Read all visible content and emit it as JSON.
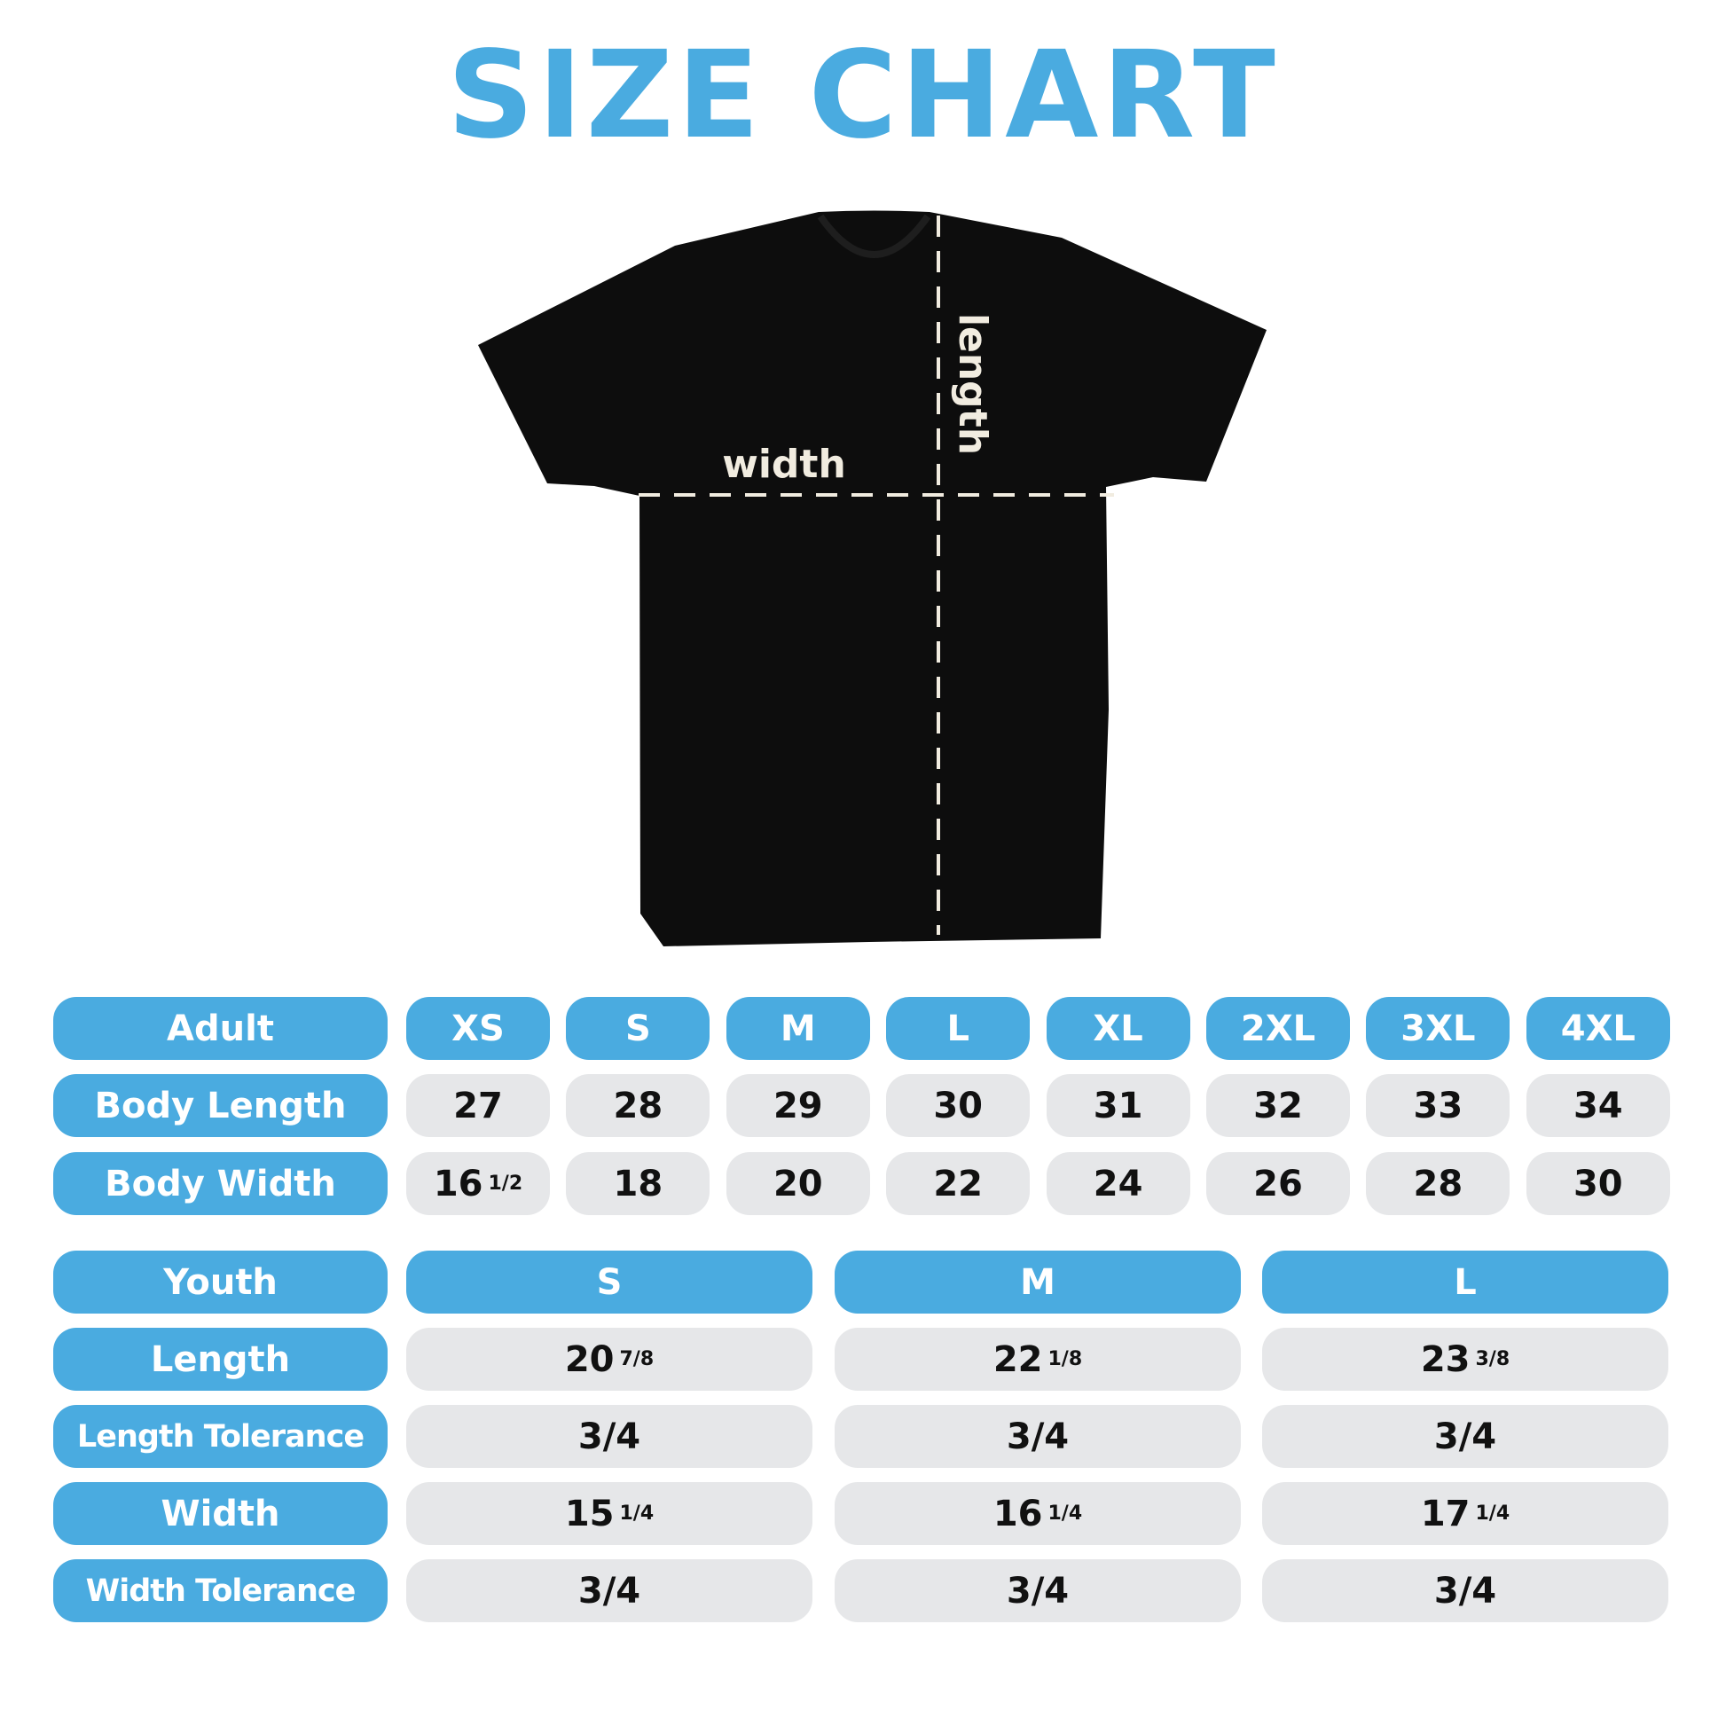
{
  "title": "SIZE CHART",
  "shirt": {
    "width_label": "width",
    "length_label": "length",
    "shirt_color": "#0d0d0d",
    "line_color": "#f1ece0"
  },
  "colors": {
    "accent": "#4aabe0",
    "cell": "#e6e7e9"
  },
  "adult": {
    "header": "Adult",
    "sizes": [
      "XS",
      "S",
      "M",
      "L",
      "XL",
      "2XL",
      "3XL",
      "4XL"
    ],
    "rows": [
      {
        "label": "Body Length",
        "values": [
          {
            "w": "27",
            "f": ""
          },
          {
            "w": "28",
            "f": ""
          },
          {
            "w": "29",
            "f": ""
          },
          {
            "w": "30",
            "f": ""
          },
          {
            "w": "31",
            "f": ""
          },
          {
            "w": "32",
            "f": ""
          },
          {
            "w": "33",
            "f": ""
          },
          {
            "w": "34",
            "f": ""
          }
        ]
      },
      {
        "label": "Body Width",
        "values": [
          {
            "w": "16",
            "f": "1/2"
          },
          {
            "w": "18",
            "f": ""
          },
          {
            "w": "20",
            "f": ""
          },
          {
            "w": "22",
            "f": ""
          },
          {
            "w": "24",
            "f": ""
          },
          {
            "w": "26",
            "f": ""
          },
          {
            "w": "28",
            "f": ""
          },
          {
            "w": "30",
            "f": ""
          }
        ]
      }
    ]
  },
  "youth": {
    "header": "Youth",
    "sizes": [
      "S",
      "M",
      "L"
    ],
    "rows": [
      {
        "label": "Length",
        "values": [
          {
            "w": "20",
            "f": "7/8"
          },
          {
            "w": "22",
            "f": "1/8"
          },
          {
            "w": "23",
            "f": "3/8"
          }
        ]
      },
      {
        "label": "Length Tolerance",
        "values": [
          {
            "w": "3/4",
            "f": ""
          },
          {
            "w": "3/4",
            "f": ""
          },
          {
            "w": "3/4",
            "f": ""
          }
        ]
      },
      {
        "label": "Width",
        "values": [
          {
            "w": "15",
            "f": "1/4"
          },
          {
            "w": "16",
            "f": "1/4"
          },
          {
            "w": "17",
            "f": "1/4"
          }
        ]
      },
      {
        "label": "Width Tolerance",
        "values": [
          {
            "w": "3/4",
            "f": ""
          },
          {
            "w": "3/4",
            "f": ""
          },
          {
            "w": "3/4",
            "f": ""
          }
        ]
      }
    ]
  }
}
